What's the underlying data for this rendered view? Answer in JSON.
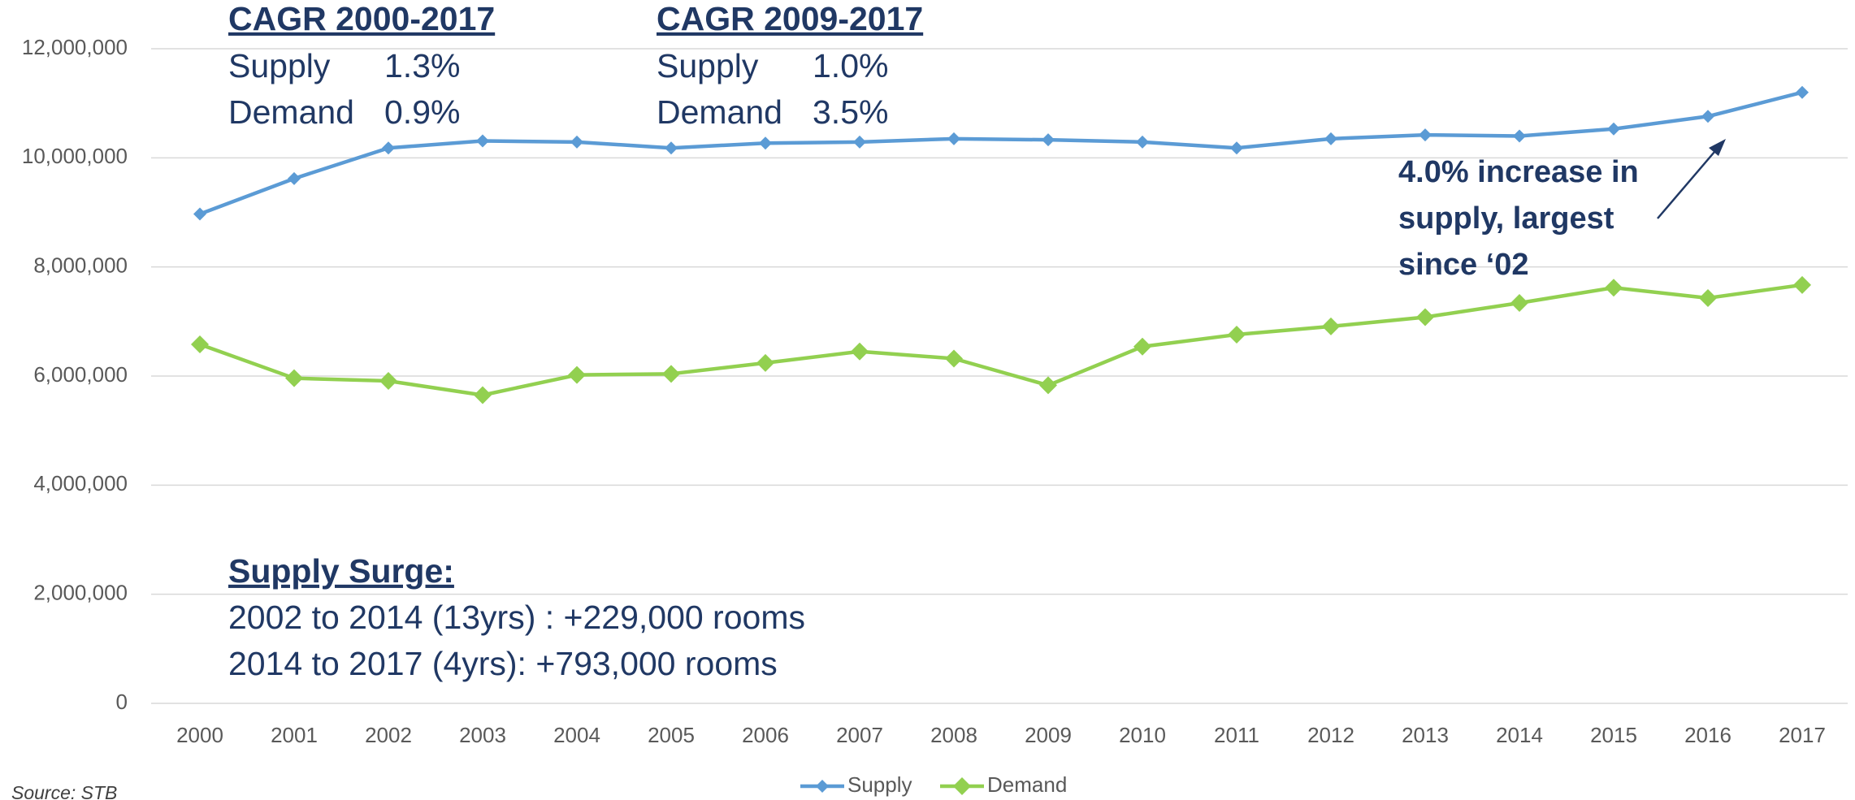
{
  "chart_data": {
    "type": "line",
    "categories": [
      "2000",
      "2001",
      "2002",
      "2003",
      "2004",
      "2005",
      "2006",
      "2007",
      "2008",
      "2009",
      "2010",
      "2011",
      "2012",
      "2013",
      "2014",
      "2015",
      "2016",
      "2017"
    ],
    "series": [
      {
        "name": "Supply",
        "color": "#5b9bd5",
        "values": [
          8970000,
          9620000,
          10180000,
          10310000,
          10290000,
          10180000,
          10270000,
          10290000,
          10350000,
          10330000,
          10290000,
          10180000,
          10350000,
          10420000,
          10400000,
          10530000,
          10760000,
          11200000
        ]
      },
      {
        "name": "Demand",
        "color": "#92d050",
        "values": [
          6580000,
          5960000,
          5910000,
          5650000,
          6020000,
          6040000,
          6240000,
          6450000,
          6320000,
          5830000,
          6540000,
          6760000,
          6910000,
          7080000,
          7340000,
          7620000,
          7430000,
          7670000
        ]
      }
    ],
    "ylim": [
      0,
      12000000
    ],
    "yticks": [
      0,
      {
        "value": 2000000,
        "label": "2,000,000"
      },
      {
        "value": 4000000,
        "label": "4,000,000"
      },
      {
        "value": 6000000,
        "label": "6,000,000"
      },
      {
        "value": 8000000,
        "label": "8,000,000"
      },
      {
        "value": 10000000,
        "label": "10,000,000"
      },
      {
        "value": 12000000,
        "label": "12,000,000"
      }
    ],
    "grid": true,
    "legend": "bottom",
    "annotations": {
      "cagr": [
        {
          "title": "CAGR 2000-2017",
          "rows": [
            [
              "Supply",
              "1.3%"
            ],
            [
              "Demand",
              "0.9%"
            ]
          ]
        },
        {
          "title": "CAGR 2009-2017",
          "rows": [
            [
              "Supply",
              "1.0%"
            ],
            [
              "Demand",
              "3.5%"
            ]
          ]
        }
      ],
      "surge": {
        "title": "Supply Surge:",
        "lines": [
          "2002 to 2014 (13yrs) : +229,000 rooms",
          "2014 to 2017 (4yrs): +793,000 rooms"
        ]
      },
      "callout": [
        "4.0% increase in",
        "supply, largest",
        "since ‘02"
      ]
    },
    "source": "Source: STB"
  }
}
